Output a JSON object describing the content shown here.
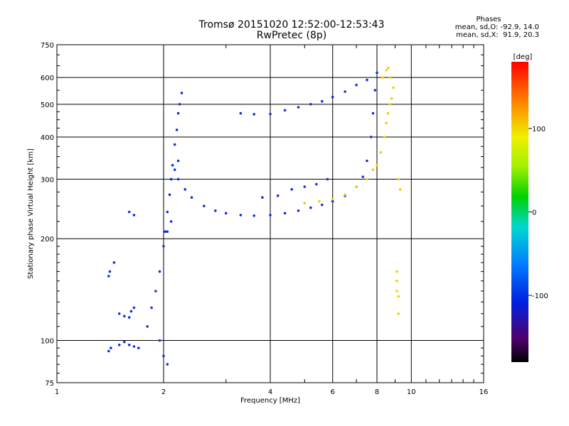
{
  "header": {
    "title": "Tromsø 20151020 12:52:00-12:53:43",
    "subtitle": "RwPretec (8p)"
  },
  "stats": {
    "heading": "Phases",
    "line1": "mean, sd,O: -92.9, 14.0",
    "line2": "mean, sd,X:  91.9, 20.3"
  },
  "colorbar": {
    "label": "[deg]",
    "ticks": [
      "100",
      "0",
      "-100"
    ],
    "tick_values": [
      100,
      0,
      -100
    ],
    "range": [
      -180,
      180
    ]
  },
  "chart_data": {
    "type": "scatter",
    "xlabel": "Frequency [MHz]",
    "ylabel": "Stationary phase Virtual Height [km]",
    "x_scale": "log",
    "y_scale": "log",
    "xlim": [
      1,
      16
    ],
    "ylim": [
      75,
      750
    ],
    "x_ticks": [
      1,
      2,
      4,
      6,
      8,
      10,
      16
    ],
    "x_tick_labels": [
      "1",
      "2",
      "4",
      "6",
      "8",
      "10",
      "16"
    ],
    "y_ticks": [
      75,
      100,
      200,
      300,
      400,
      500,
      600,
      750
    ],
    "y_tick_labels": [
      "75",
      "100",
      "200",
      "300",
      "400",
      "500",
      "600",
      "750"
    ],
    "grid": true,
    "series": [
      {
        "values": [
          [
            1.4,
            93
          ],
          [
            1.42,
            95
          ],
          [
            1.5,
            97
          ],
          [
            1.55,
            99
          ],
          [
            1.6,
            97
          ],
          [
            1.65,
            96
          ],
          [
            1.7,
            95
          ],
          [
            1.4,
            155
          ],
          [
            1.41,
            160
          ],
          [
            1.45,
            170
          ],
          [
            1.5,
            120
          ],
          [
            1.55,
            118
          ],
          [
            1.6,
            117
          ],
          [
            1.62,
            122
          ],
          [
            1.65,
            125
          ],
          [
            1.6,
            240
          ],
          [
            1.65,
            235
          ],
          [
            1.8,
            110
          ],
          [
            1.85,
            125
          ],
          [
            1.9,
            140
          ],
          [
            1.95,
            160
          ],
          [
            2.0,
            190
          ],
          [
            2.02,
            210
          ],
          [
            2.05,
            240
          ],
          [
            2.08,
            270
          ],
          [
            2.1,
            300
          ],
          [
            2.12,
            330
          ],
          [
            2.15,
            380
          ],
          [
            2.18,
            420
          ],
          [
            2.2,
            470
          ],
          [
            2.22,
            500
          ],
          [
            2.25,
            540
          ],
          [
            2.2,
            300
          ],
          [
            2.3,
            280
          ],
          [
            2.4,
            265
          ],
          [
            2.6,
            250
          ],
          [
            2.8,
            242
          ],
          [
            3.0,
            238
          ],
          [
            3.3,
            235
          ],
          [
            3.6,
            234
          ],
          [
            4.0,
            235
          ],
          [
            4.4,
            238
          ],
          [
            4.8,
            242
          ],
          [
            5.2,
            247
          ],
          [
            5.6,
            252
          ],
          [
            6.0,
            258
          ],
          [
            6.5,
            268
          ],
          [
            7.0,
            285
          ],
          [
            7.3,
            305
          ],
          [
            7.5,
            340
          ],
          [
            7.7,
            400
          ],
          [
            7.8,
            470
          ],
          [
            7.9,
            550
          ],
          [
            8.0,
            620
          ],
          [
            3.3,
            470
          ],
          [
            3.6,
            467
          ],
          [
            4.0,
            468
          ],
          [
            4.4,
            480
          ],
          [
            4.8,
            490
          ],
          [
            5.2,
            500
          ],
          [
            5.6,
            510
          ],
          [
            6.0,
            525
          ],
          [
            6.5,
            545
          ],
          [
            7.0,
            570
          ],
          [
            7.5,
            590
          ],
          [
            2.1,
            300
          ],
          [
            2.15,
            320
          ],
          [
            2.2,
            340
          ],
          [
            3.8,
            265
          ],
          [
            4.2,
            268
          ],
          [
            4.6,
            280
          ],
          [
            5.0,
            285
          ],
          [
            5.4,
            290
          ],
          [
            5.8,
            300
          ],
          [
            2.05,
            210
          ],
          [
            2.1,
            225
          ],
          [
            1.95,
            100
          ],
          [
            2.0,
            90
          ],
          [
            2.05,
            85
          ]
        ]
      },
      {
        "values": [
          [
            5.0,
            255
          ],
          [
            5.5,
            258
          ],
          [
            6.0,
            262
          ],
          [
            6.5,
            270
          ],
          [
            7.0,
            285
          ],
          [
            7.5,
            300
          ],
          [
            7.8,
            320
          ],
          [
            8.0,
            330
          ],
          [
            8.2,
            360
          ],
          [
            8.4,
            400
          ],
          [
            8.5,
            440
          ],
          [
            8.6,
            470
          ],
          [
            8.7,
            500
          ],
          [
            8.8,
            520
          ],
          [
            8.3,
            600
          ],
          [
            8.5,
            630
          ],
          [
            8.6,
            640
          ],
          [
            8.7,
            600
          ],
          [
            8.9,
            560
          ],
          [
            9.2,
            300
          ],
          [
            9.3,
            280
          ],
          [
            9.1,
            160
          ],
          [
            9.1,
            150
          ],
          [
            9.1,
            140
          ],
          [
            9.2,
            135
          ],
          [
            9.2,
            120
          ]
        ]
      }
    ]
  }
}
